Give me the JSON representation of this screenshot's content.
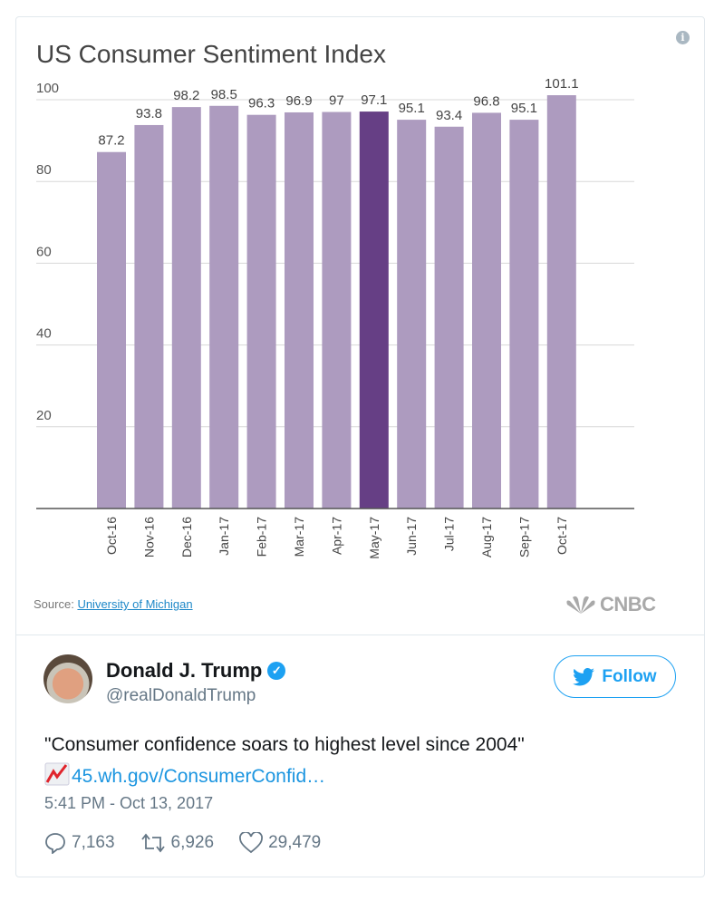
{
  "chart_data": {
    "type": "bar",
    "title": "US Consumer Sentiment Index",
    "categories": [
      "Oct-16",
      "Nov-16",
      "Dec-16",
      "Jan-17",
      "Feb-17",
      "Mar-17",
      "Apr-17",
      "May-17",
      "Jun-17",
      "Jul-17",
      "Aug-17",
      "Sep-17",
      "Oct-17"
    ],
    "values": [
      87.2,
      93.8,
      98.2,
      98.5,
      96.3,
      96.9,
      97,
      97.1,
      95.1,
      93.4,
      96.8,
      95.1,
      101.1
    ],
    "value_labels": [
      "87.2",
      "93.8",
      "98.2",
      "98.5",
      "96.3",
      "96.9",
      "97",
      "97.1",
      "95.1",
      "93.4",
      "96.8",
      "95.1",
      "101.1"
    ],
    "highlighted_category": "May-17",
    "yticks": [
      20,
      40,
      60,
      80,
      100
    ],
    "ylim": [
      0,
      100
    ],
    "grid": true,
    "colors": {
      "bar": "#ad9bbf",
      "highlight": "#663f85",
      "grid": "#d8d8d8"
    },
    "source_prefix": "Source:",
    "source_link": "University of Michigan",
    "logo": "CNBC"
  },
  "tweet": {
    "name": "Donald J. Trump",
    "handle": "@realDonaldTrump",
    "verified": true,
    "follow_label": "Follow",
    "text": "\"Consumer confidence soars to highest level since 2004\"",
    "emoji": "chart-increasing",
    "link": "45.wh.gov/ConsumerConfid…",
    "timestamp": "5:41 PM - Oct 13, 2017",
    "replies": "7,163",
    "retweets": "6,926",
    "likes": "29,479",
    "accent": "#1da1f2"
  }
}
